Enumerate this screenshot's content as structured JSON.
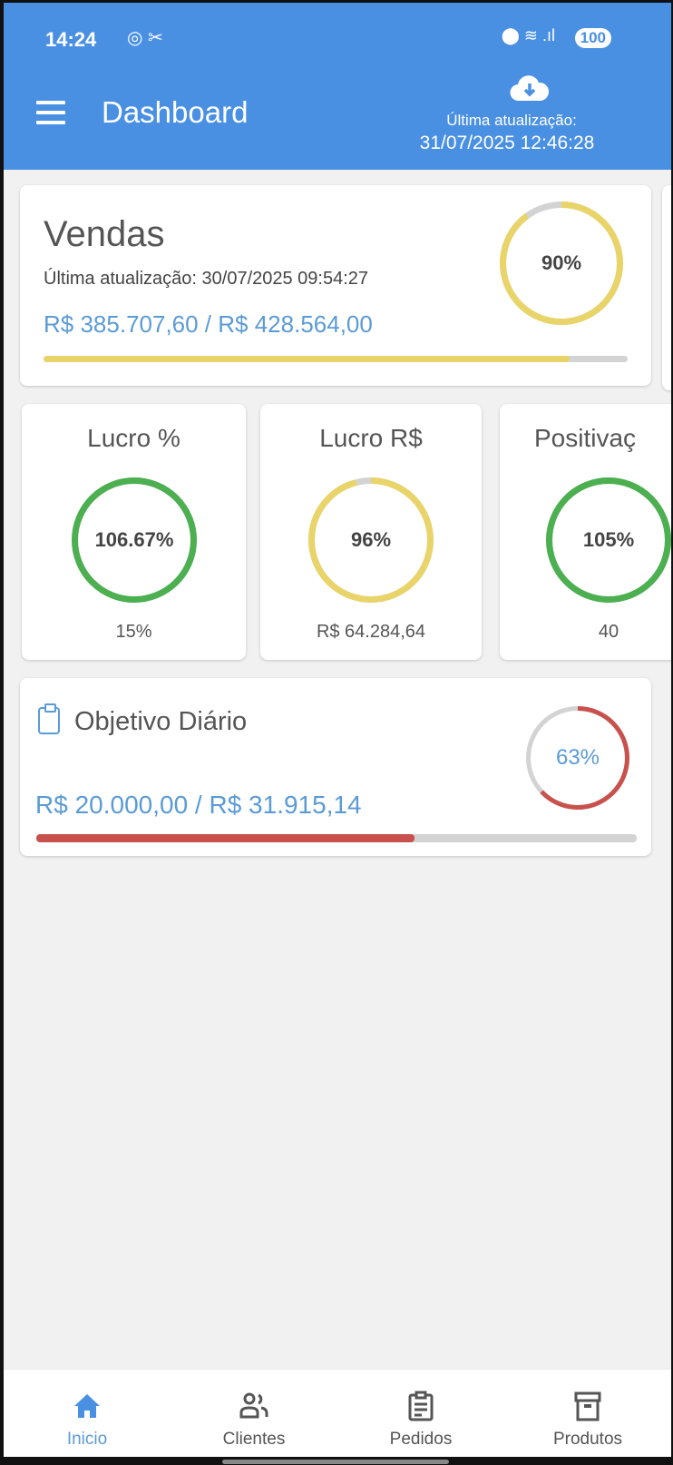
{
  "status_bar": {
    "time": "14:24",
    "battery": "100"
  },
  "header": {
    "title": "Dashboard",
    "last_update_label": "Última atualização:",
    "last_update_date": "31/07/2025 12:46:28"
  },
  "vendas": {
    "title": "Vendas",
    "subtitle": "Última atualização: 30/07/2025 09:54:27",
    "value": "R$ 385.707,60 / R$ 428.564,00",
    "percent_label": "90%",
    "progress": 0.9,
    "color": "#e9d46a"
  },
  "metrics": [
    {
      "title": "Lucro %",
      "percent_label": "106.67%",
      "progress": 1.0,
      "footer": "15%",
      "color": "#4caf50"
    },
    {
      "title": "Lucro R$",
      "percent_label": "96%",
      "progress": 0.96,
      "footer": "R$ 64.284,64",
      "color": "#e9d46a"
    },
    {
      "title": "Positivaç",
      "percent_label": "105%",
      "progress": 1.0,
      "footer": "40",
      "color": "#4caf50"
    }
  ],
  "objetivo": {
    "title": "Objetivo Diário",
    "value": "R$ 20.000,00 / R$ 31.915,14",
    "percent_label": "63%",
    "progress": 0.63,
    "color": "#c9514d"
  },
  "nav": [
    {
      "label": "Inicio",
      "icon": "home-icon",
      "active": true
    },
    {
      "label": "Clientes",
      "icon": "people-icon"
    },
    {
      "label": "Pedidos",
      "icon": "clipboard-icon"
    },
    {
      "label": "Produtos",
      "icon": "archive-box-icon"
    }
  ],
  "colors": {
    "primary": "#4a90e2",
    "accent_text": "#5b9bd5",
    "track": "#d3d3d3"
  }
}
